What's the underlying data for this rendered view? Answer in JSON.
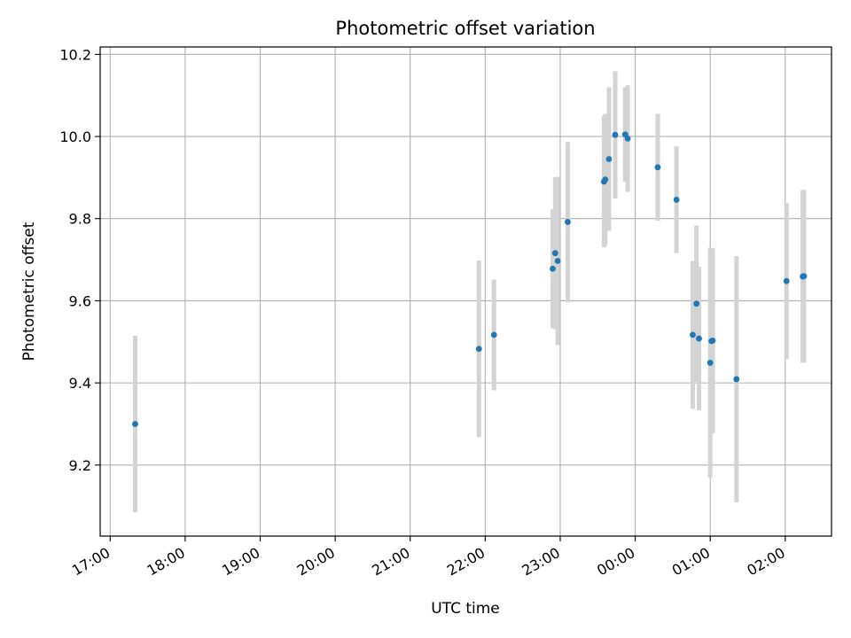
{
  "chart_data": {
    "type": "scatter",
    "title": "Photometric offset variation",
    "xlabel": "UTC time",
    "ylabel": "Photometric offset",
    "x_unit": "minutes after 17:00 UTC",
    "xlim": [
      -8,
      577
    ],
    "ylim": [
      9.027,
      10.218
    ],
    "grid": true,
    "x_ticks": [
      {
        "value": 0,
        "label": "17:00"
      },
      {
        "value": 60,
        "label": "18:00"
      },
      {
        "value": 120,
        "label": "19:00"
      },
      {
        "value": 180,
        "label": "20:00"
      },
      {
        "value": 240,
        "label": "21:00"
      },
      {
        "value": 300,
        "label": "22:00"
      },
      {
        "value": 360,
        "label": "23:00"
      },
      {
        "value": 420,
        "label": "00:00"
      },
      {
        "value": 480,
        "label": "01:00"
      },
      {
        "value": 540,
        "label": "02:00"
      }
    ],
    "y_ticks": [
      {
        "value": 9.2,
        "label": "9.2"
      },
      {
        "value": 9.4,
        "label": "9.4"
      },
      {
        "value": 9.6,
        "label": "9.6"
      },
      {
        "value": 9.8,
        "label": "9.8"
      },
      {
        "value": 10.0,
        "label": "10.0"
      },
      {
        "value": 10.2,
        "label": "10.2"
      }
    ],
    "marker_color": "#1f77b4",
    "errorbar_color": "#d3d3d3",
    "points": [
      {
        "x": 20,
        "y": 9.3,
        "err": 0.215
      },
      {
        "x": 295,
        "y": 9.483,
        "err": 0.215
      },
      {
        "x": 307,
        "y": 9.517,
        "err": 0.135
      },
      {
        "x": 354,
        "y": 9.678,
        "err": 0.145
      },
      {
        "x": 356,
        "y": 9.716,
        "err": 0.185
      },
      {
        "x": 358,
        "y": 9.697,
        "err": 0.205
      },
      {
        "x": 366,
        "y": 9.792,
        "err": 0.195
      },
      {
        "x": 395,
        "y": 9.89,
        "err": 0.16
      },
      {
        "x": 396,
        "y": 9.895,
        "err": 0.16
      },
      {
        "x": 399,
        "y": 9.945,
        "err": 0.175
      },
      {
        "x": 404,
        "y": 10.004,
        "err": 0.155
      },
      {
        "x": 412,
        "y": 10.005,
        "err": 0.115
      },
      {
        "x": 414,
        "y": 9.995,
        "err": 0.13
      },
      {
        "x": 438,
        "y": 9.925,
        "err": 0.13
      },
      {
        "x": 453,
        "y": 9.846,
        "err": 0.13
      },
      {
        "x": 466,
        "y": 9.517,
        "err": 0.18
      },
      {
        "x": 469,
        "y": 9.593,
        "err": 0.19
      },
      {
        "x": 471,
        "y": 9.508,
        "err": 0.175
      },
      {
        "x": 480,
        "y": 9.449,
        "err": 0.28
      },
      {
        "x": 481,
        "y": 9.502,
        "err": 0.225
      },
      {
        "x": 482,
        "y": 9.503,
        "err": 0.225
      },
      {
        "x": 501,
        "y": 9.409,
        "err": 0.3
      },
      {
        "x": 541,
        "y": 9.648,
        "err": 0.19
      },
      {
        "x": 554,
        "y": 9.659,
        "err": 0.21
      },
      {
        "x": 555,
        "y": 9.66,
        "err": 0.21
      }
    ]
  }
}
